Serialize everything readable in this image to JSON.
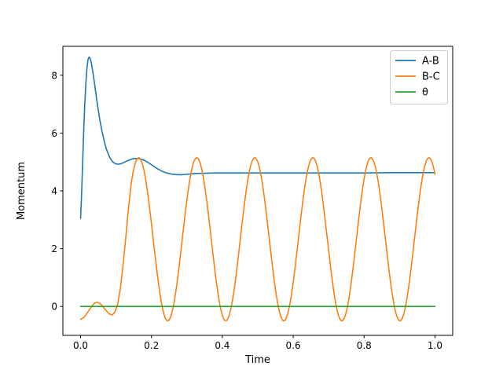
{
  "figure": {
    "background": "#ffffff",
    "axes_edge_color": "#000000"
  },
  "chart_data": {
    "type": "line",
    "title": "",
    "xlabel": "Time",
    "ylabel": "Momentum",
    "xlim": [
      -0.05,
      1.05
    ],
    "ylim": [
      -1.0,
      9.0
    ],
    "grid": false,
    "x_ticks": [
      {
        "v": 0.0,
        "label": "0.0"
      },
      {
        "v": 0.2,
        "label": "0.2"
      },
      {
        "v": 0.4,
        "label": "0.4"
      },
      {
        "v": 0.6,
        "label": "0.6"
      },
      {
        "v": 0.8,
        "label": "0.8"
      },
      {
        "v": 1.0,
        "label": "1.0"
      }
    ],
    "y_ticks": [
      {
        "v": 0,
        "label": "0"
      },
      {
        "v": 2,
        "label": "2"
      },
      {
        "v": 4,
        "label": "4"
      },
      {
        "v": 6,
        "label": "6"
      },
      {
        "v": 8,
        "label": "8"
      }
    ],
    "legend": {
      "position": "upper right",
      "border_color": "#cccccc",
      "background": "#ffffff"
    },
    "series": [
      {
        "name": "A-B",
        "color": "#1f77b4",
        "points": [
          [
            0.0,
            3.05
          ],
          [
            0.003,
            3.95
          ],
          [
            0.006,
            5.05
          ],
          [
            0.009,
            6.15
          ],
          [
            0.012,
            7.05
          ],
          [
            0.015,
            7.75
          ],
          [
            0.018,
            8.25
          ],
          [
            0.021,
            8.55
          ],
          [
            0.024,
            8.63
          ],
          [
            0.027,
            8.58
          ],
          [
            0.03,
            8.44
          ],
          [
            0.034,
            8.16
          ],
          [
            0.038,
            7.83
          ],
          [
            0.043,
            7.38
          ],
          [
            0.048,
            6.94
          ],
          [
            0.054,
            6.48
          ],
          [
            0.06,
            6.08
          ],
          [
            0.067,
            5.7
          ],
          [
            0.074,
            5.4
          ],
          [
            0.082,
            5.16
          ],
          [
            0.09,
            5.01
          ],
          [
            0.098,
            4.94
          ],
          [
            0.106,
            4.92
          ],
          [
            0.114,
            4.94
          ],
          [
            0.122,
            4.98
          ],
          [
            0.13,
            5.03
          ],
          [
            0.138,
            5.07
          ],
          [
            0.147,
            5.11
          ],
          [
            0.156,
            5.12
          ],
          [
            0.164,
            5.12
          ],
          [
            0.173,
            5.09
          ],
          [
            0.182,
            5.04
          ],
          [
            0.192,
            4.97
          ],
          [
            0.203,
            4.88
          ],
          [
            0.215,
            4.78
          ],
          [
            0.228,
            4.69
          ],
          [
            0.242,
            4.62
          ],
          [
            0.257,
            4.58
          ],
          [
            0.272,
            4.56
          ],
          [
            0.288,
            4.56
          ],
          [
            0.305,
            4.58
          ],
          [
            0.325,
            4.6
          ],
          [
            0.35,
            4.61
          ],
          [
            0.38,
            4.62
          ],
          [
            0.42,
            4.62
          ],
          [
            0.47,
            4.62
          ],
          [
            0.52,
            4.62
          ],
          [
            0.58,
            4.62
          ],
          [
            0.65,
            4.62
          ],
          [
            0.72,
            4.62
          ],
          [
            0.8,
            4.62
          ],
          [
            0.88,
            4.63
          ],
          [
            0.95,
            4.63
          ],
          [
            1.0,
            4.63
          ]
        ]
      },
      {
        "name": "B-C",
        "color": "#ff7f0e",
        "points": [
          [
            0.0,
            -0.45
          ],
          [
            0.01,
            -0.37
          ],
          [
            0.02,
            -0.2
          ],
          [
            0.03,
            -0.02
          ],
          [
            0.038,
            0.1
          ],
          [
            0.046,
            0.15
          ],
          [
            0.054,
            0.11
          ],
          [
            0.063,
            0.0
          ],
          [
            0.072,
            -0.14
          ],
          [
            0.081,
            -0.26
          ],
          [
            0.09,
            -0.29
          ],
          [
            0.098,
            -0.17
          ],
          [
            0.105,
            0.1
          ],
          [
            0.112,
            0.6
          ],
          [
            0.12,
            1.45
          ],
          [
            0.128,
            2.45
          ],
          [
            0.134,
            3.25
          ],
          [
            0.14,
            3.95
          ]
        ],
        "oscillation": {
          "x_start": 0.144,
          "x_end": 1.0,
          "step": 0.004,
          "center": 2.325,
          "amplitude": 2.825,
          "period": 0.1638,
          "peak_x": 0.164,
          "peak_value": 5.15,
          "trough_value": -0.5
        }
      },
      {
        "name": "θ",
        "color": "#2ca02c",
        "points": [
          [
            0.0,
            0.0
          ],
          [
            1.0,
            0.0
          ]
        ]
      }
    ]
  }
}
